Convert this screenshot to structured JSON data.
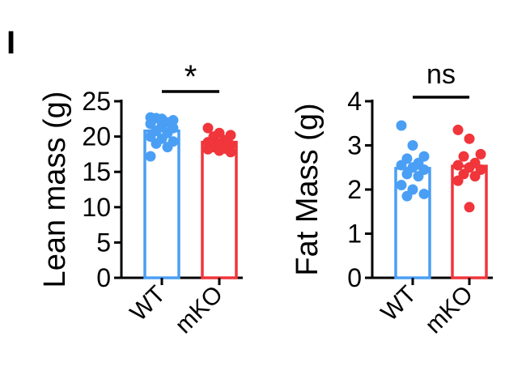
{
  "panel_label": "I",
  "colors": {
    "WT": "#4a9ff5",
    "mKO": "#f0353b"
  },
  "chart_data": [
    {
      "type": "bar",
      "ylabel": "Lean mass (g)",
      "categories": [
        "WT",
        "mKO"
      ],
      "ylim": [
        0,
        25
      ],
      "yticks": [
        "0",
        "5",
        "10",
        "15",
        "20",
        "25"
      ],
      "yticks_values": [
        0,
        5,
        10,
        15,
        20,
        25
      ],
      "values": [
        20.8,
        19.2
      ],
      "points": [
        [
          22.7,
          22.5,
          22.3,
          22.6,
          22.0,
          21.8,
          21.5,
          21.2,
          20.8,
          20.5,
          20.0,
          19.7,
          19.3,
          19.0,
          18.5,
          17.2
        ],
        [
          21.2,
          20.5,
          20.2,
          20.0,
          19.5,
          19.2,
          19.0,
          18.8,
          18.5,
          18.3,
          18.2,
          18.0,
          17.8
        ]
      ],
      "significance": "*"
    },
    {
      "type": "bar",
      "ylabel": "Fat Mass (g)",
      "categories": [
        "WT",
        "mKO"
      ],
      "ylim": [
        0,
        4
      ],
      "yticks": [
        "0",
        "1",
        "2",
        "3",
        "4"
      ],
      "yticks_values": [
        0,
        1,
        2,
        3,
        4
      ],
      "values": [
        2.48,
        2.53
      ],
      "points": [
        [
          3.45,
          3.0,
          2.75,
          2.7,
          2.6,
          2.55,
          2.5,
          2.45,
          2.35,
          2.3,
          2.1,
          2.0,
          1.9,
          1.85
        ],
        [
          3.35,
          3.15,
          2.8,
          2.75,
          2.6,
          2.55,
          2.5,
          2.45,
          2.35,
          2.3,
          2.2,
          1.6
        ]
      ],
      "significance": "ns"
    }
  ]
}
